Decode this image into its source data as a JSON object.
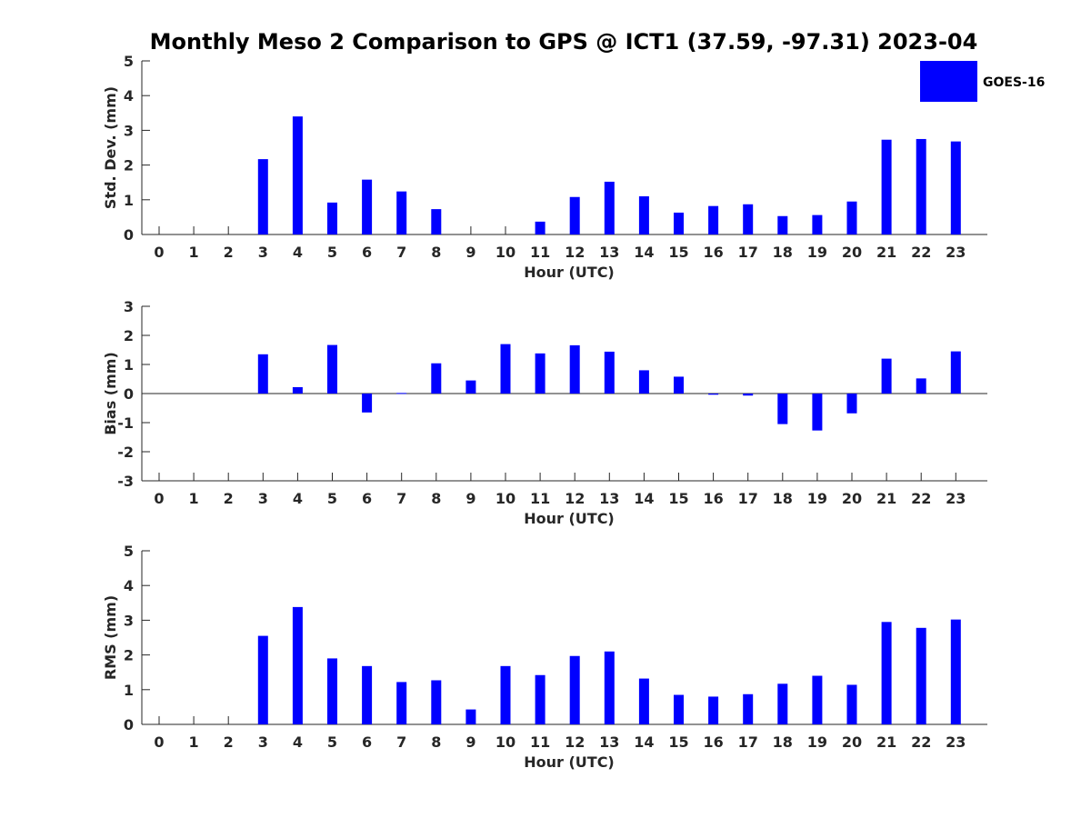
{
  "title": "Monthly Meso 2 Comparison to GPS @ ICT1 (37.59, -97.31) 2023-04",
  "legend": {
    "label": "GOES-16",
    "color": "#0000ff",
    "placement": "top-right"
  },
  "chart_data": [
    {
      "type": "bar",
      "ylabel": "Std. Dev. (mm)",
      "xlabel": "Hour (UTC)",
      "ylim": [
        0,
        5
      ],
      "yticks": [
        0,
        1,
        2,
        3,
        4,
        5
      ],
      "categories": [
        "0",
        "1",
        "2",
        "3",
        "4",
        "5",
        "6",
        "7",
        "8",
        "9",
        "10",
        "11",
        "12",
        "13",
        "14",
        "15",
        "16",
        "17",
        "18",
        "19",
        "20",
        "21",
        "22",
        "23"
      ],
      "series": [
        {
          "name": "GOES-16",
          "values": [
            null,
            null,
            null,
            2.17,
            3.4,
            0.92,
            1.58,
            1.24,
            0.73,
            null,
            null,
            0.37,
            1.08,
            1.52,
            1.1,
            0.63,
            0.82,
            0.87,
            0.53,
            0.56,
            0.95,
            2.73,
            2.75,
            2.68
          ]
        }
      ],
      "grid": false
    },
    {
      "type": "bar",
      "ylabel": "Bias (mm)",
      "xlabel": "Hour (UTC)",
      "ylim": [
        -3,
        3
      ],
      "yticks": [
        -3,
        -2,
        -1,
        0,
        1,
        2,
        3
      ],
      "categories": [
        "0",
        "1",
        "2",
        "3",
        "4",
        "5",
        "6",
        "7",
        "8",
        "9",
        "10",
        "11",
        "12",
        "13",
        "14",
        "15",
        "16",
        "17",
        "18",
        "19",
        "20",
        "21",
        "22",
        "23"
      ],
      "series": [
        {
          "name": "GOES-16",
          "values": [
            null,
            null,
            null,
            1.35,
            0.22,
            1.67,
            -0.65,
            0.02,
            1.04,
            0.45,
            1.7,
            1.38,
            1.66,
            1.44,
            0.8,
            0.58,
            -0.04,
            -0.07,
            -1.05,
            -1.27,
            -0.68,
            1.2,
            0.52,
            1.45
          ]
        }
      ],
      "grid": false
    },
    {
      "type": "bar",
      "ylabel": "RMS (mm)",
      "xlabel": "Hour (UTC)",
      "ylim": [
        0,
        5
      ],
      "yticks": [
        0,
        1,
        2,
        3,
        4,
        5
      ],
      "categories": [
        "0",
        "1",
        "2",
        "3",
        "4",
        "5",
        "6",
        "7",
        "8",
        "9",
        "10",
        "11",
        "12",
        "13",
        "14",
        "15",
        "16",
        "17",
        "18",
        "19",
        "20",
        "21",
        "22",
        "23"
      ],
      "series": [
        {
          "name": "GOES-16",
          "values": [
            null,
            null,
            null,
            2.55,
            3.38,
            1.9,
            1.68,
            1.22,
            1.27,
            0.43,
            1.68,
            1.42,
            1.97,
            2.1,
            1.32,
            0.85,
            0.8,
            0.87,
            1.17,
            1.4,
            1.14,
            2.95,
            2.78,
            3.02
          ]
        }
      ],
      "grid": false
    }
  ]
}
